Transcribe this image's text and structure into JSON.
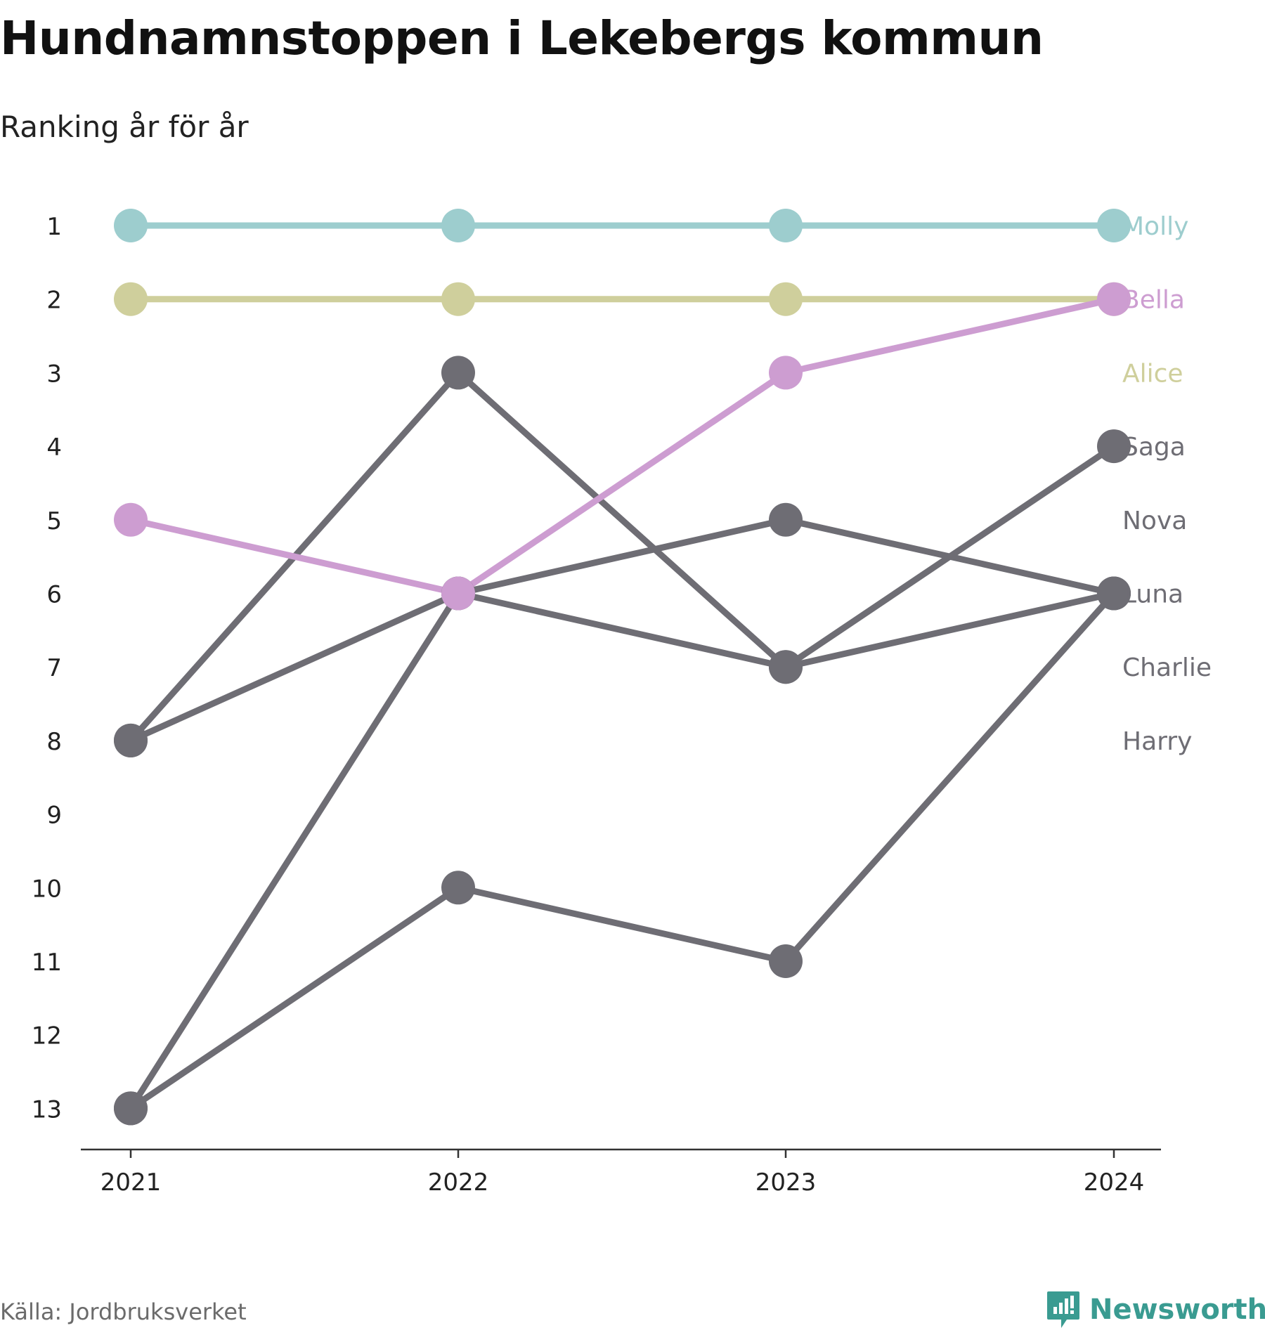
{
  "chart_data": {
    "type": "line",
    "title": "Hundnamnstoppen i Lekebergs kommun",
    "subtitle": "Ranking år för år",
    "x": [
      "2021",
      "2022",
      "2023",
      "2024"
    ],
    "y_ticks": [
      "1",
      "2",
      "3",
      "4",
      "5",
      "6",
      "7",
      "8",
      "9",
      "10",
      "11",
      "12",
      "13"
    ],
    "ylim": [
      1,
      13
    ],
    "y_reversed": true,
    "grid": false,
    "series": [
      {
        "name": "Molly",
        "values": [
          1,
          1,
          1,
          1
        ],
        "color": "#9dcdce"
      },
      {
        "name": "Alice",
        "values": [
          2,
          2,
          2,
          2
        ],
        "color": "#cfcf9c"
      },
      {
        "name": "Bella",
        "values": [
          5,
          6,
          3,
          2
        ],
        "color": "#cd9dd1"
      },
      {
        "name": "Saga",
        "values": [
          8,
          3,
          7,
          4
        ],
        "color": "#6e6d74"
      },
      {
        "name": "Nova",
        "values": [
          13,
          6,
          5,
          6
        ],
        "color": "#6e6d74"
      },
      {
        "name": "Luna",
        "values": [
          13,
          10,
          11,
          6
        ],
        "color": "#6e6d74"
      },
      {
        "name": "Charlie",
        "values": [
          8,
          6,
          7,
          6
        ],
        "color": "#6e6d74"
      },
      {
        "name": "Harry",
        "values": [
          null,
          null,
          null,
          null
        ],
        "color": "#6e6d74"
      }
    ],
    "end_labels": [
      {
        "text": "Molly",
        "rank": 1,
        "color": "#9dcdce"
      },
      {
        "text": "Bella",
        "rank": 2,
        "color": "#cd9dd1"
      },
      {
        "text": "Alice",
        "rank": 3,
        "color": "#cfcf9c"
      },
      {
        "text": "Saga",
        "rank": 4,
        "color": "#6e6d74"
      },
      {
        "text": "Nova",
        "rank": 5,
        "color": "#6e6d74"
      },
      {
        "text": "Luna",
        "rank": 6,
        "color": "#6e6d74"
      },
      {
        "text": "Charlie",
        "rank": 7,
        "color": "#6e6d74"
      },
      {
        "text": "Harry",
        "rank": 8,
        "color": "#6e6d74"
      }
    ]
  },
  "footer": {
    "source": "Källa: Jordbruksverket",
    "brand": "Newsworthy",
    "brand_color": "#3a9b91"
  }
}
